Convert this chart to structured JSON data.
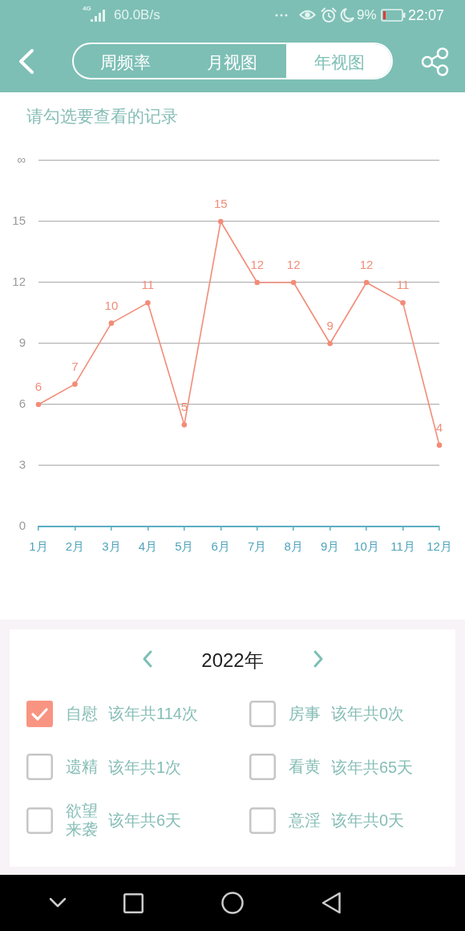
{
  "chart_data": [
    {
      "type": "other",
      "annotations": [
        "4G",
        "60.0B/s",
        "9%",
        "22:07",
        "周频率",
        "月视图",
        "年视图"
      ]
    },
    {
      "type": "line",
      "title": "请勾选要查看的记录",
      "categories": [
        "1月",
        "2月",
        "3月",
        "4月",
        "5月",
        "6月",
        "7月",
        "8月",
        "9月",
        "10月",
        "11月",
        "12月"
      ],
      "values": [
        6,
        7,
        10,
        11,
        5,
        15,
        12,
        12,
        9,
        12,
        11,
        4
      ],
      "color": "#f28c78",
      "ylim": [
        0,
        18
      ],
      "yticks": [
        0,
        3,
        6,
        9,
        12,
        15,
        {
          "value": 18,
          "label": "∞"
        }
      ],
      "grid": "y",
      "marker": "circle",
      "data_labels": true
    },
    {
      "type": "other",
      "annotations": [
        "2022年",
        "自慰",
        "该年共114次",
        "房事",
        "该年共0次",
        "遗精",
        "该年共1次",
        "看黄",
        "该年共65天",
        "欲望来袭",
        "该年共6天",
        "意淫",
        "该年共0天"
      ]
    }
  ]
}
